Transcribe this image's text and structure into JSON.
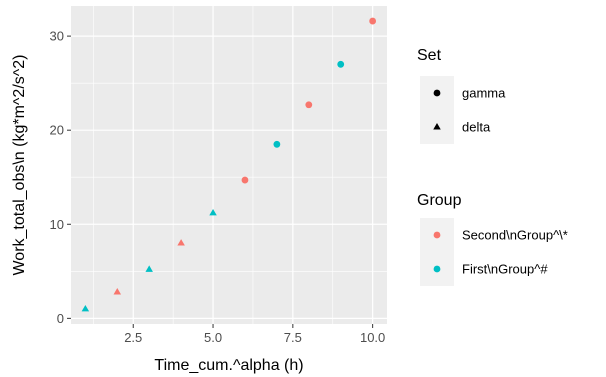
{
  "chart_data": {
    "type": "scatter",
    "xlabel": "Time_cum.^alpha (h)",
    "ylabel": "Work_total_obs\\n (kg*m^2/s^2)",
    "xlim": [
      0.55,
      10.45
    ],
    "ylim": [
      -0.6,
      33.2
    ],
    "x_ticks": [
      2.5,
      5.0,
      7.5,
      10.0
    ],
    "x_tick_labels": [
      "2.5",
      "5.0",
      "7.5",
      "10.0"
    ],
    "y_ticks": [
      0,
      10,
      20,
      30
    ],
    "y_tick_labels": [
      "0",
      "10",
      "20",
      "30"
    ],
    "grid": true,
    "background": "#ebebeb",
    "points": [
      {
        "x": 1,
        "y": 1.0,
        "set": "delta",
        "group": "First\\nGroup^#"
      },
      {
        "x": 2,
        "y": 2.8,
        "set": "delta",
        "group": "Second\\nGroup^\\*"
      },
      {
        "x": 3,
        "y": 5.2,
        "set": "delta",
        "group": "First\\nGroup^#"
      },
      {
        "x": 4,
        "y": 8.0,
        "set": "delta",
        "group": "Second\\nGroup^\\*"
      },
      {
        "x": 5,
        "y": 11.2,
        "set": "delta",
        "group": "First\\nGroup^#"
      },
      {
        "x": 6,
        "y": 14.7,
        "set": "gamma",
        "group": "Second\\nGroup^\\*"
      },
      {
        "x": 7,
        "y": 18.5,
        "set": "gamma",
        "group": "First\\nGroup^#"
      },
      {
        "x": 8,
        "y": 22.7,
        "set": "gamma",
        "group": "Second\\nGroup^\\*"
      },
      {
        "x": 9,
        "y": 27.0,
        "set": "gamma",
        "group": "First\\nGroup^#"
      },
      {
        "x": 10,
        "y": 31.6,
        "set": "gamma",
        "group": "Second\\nGroup^\\*"
      }
    ],
    "legends": [
      {
        "title": "Set",
        "kind": "shape",
        "entries": [
          {
            "label": "gamma",
            "shape": "circle"
          },
          {
            "label": "delta",
            "shape": "triangle"
          }
        ]
      },
      {
        "title": "Group",
        "kind": "color",
        "entries": [
          {
            "label": "Second\\nGroup^\\*",
            "color": "#f8766d"
          },
          {
            "label": "First\\nGroup^#",
            "color": "#00bfc4"
          }
        ]
      }
    ],
    "legend_placement": "right"
  }
}
